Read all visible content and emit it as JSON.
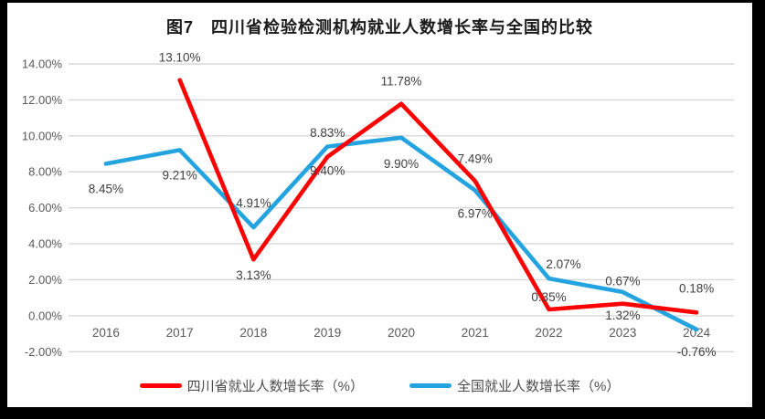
{
  "frame": {
    "border_color": "#000000",
    "panel_background": "#ffffff"
  },
  "chart_data": {
    "type": "line",
    "title": "图7　四川省检验检测机构就业人数增长率与全国的比较",
    "categories": [
      "2016",
      "2017",
      "2018",
      "2019",
      "2020",
      "2021",
      "2022",
      "2023",
      "2024"
    ],
    "y_axis": {
      "min": -2,
      "max": 14,
      "step": 2,
      "tick_labels": [
        "14.00%",
        "12.00%",
        "10.00%",
        "8.00%",
        "6.00%",
        "4.00%",
        "2.00%",
        "0.00%",
        "-2.00%"
      ]
    },
    "grid": true,
    "legend_position": "bottom",
    "style_colors": {
      "gridline": "#d7d7d7",
      "axis_text": "#595959",
      "data_label_text": "#3f3f3f"
    },
    "series": [
      {
        "id": "sichuan",
        "name": "四川省就业人数增长率（%）",
        "color": "#ff0000",
        "values": [
          null,
          13.1,
          3.13,
          8.83,
          11.78,
          7.49,
          0.35,
          0.67,
          0.18
        ],
        "labels": [
          null,
          "13.10%",
          "3.13%",
          "8.83%",
          "11.78%",
          "7.49%",
          "0.35%",
          "0.67%",
          "0.18%"
        ],
        "label_offsets": [
          null,
          [
            0,
            -20
          ],
          [
            0,
            22
          ],
          [
            0,
            -22
          ],
          [
            0,
            -20
          ],
          [
            0,
            -20
          ],
          [
            0,
            -9
          ],
          [
            0,
            -20
          ],
          [
            0,
            -22
          ]
        ]
      },
      {
        "id": "national",
        "name": "全国就业人数增长率（%）",
        "color": "#23a3df",
        "values": [
          8.45,
          9.21,
          4.91,
          9.4,
          9.9,
          6.97,
          2.07,
          1.32,
          -0.76
        ],
        "labels": [
          "8.45%",
          "9.21%",
          "4.91%",
          "9.40%",
          "9.90%",
          "6.97%",
          "2.07%",
          "1.32%",
          "-0.76%"
        ],
        "label_offsets": [
          [
            0,
            32
          ],
          [
            0,
            32
          ],
          [
            0,
            -22
          ],
          [
            0,
            31
          ],
          [
            0,
            33
          ],
          [
            0,
            30
          ],
          [
            16,
            -11
          ],
          [
            0,
            30
          ],
          [
            0,
            29
          ]
        ]
      }
    ]
  }
}
